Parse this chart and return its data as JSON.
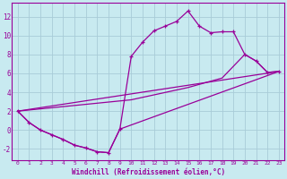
{
  "xlabel": "Windchill (Refroidissement éolien,°C)",
  "background_color": "#c8eaf0",
  "grid_color": "#a8ccd8",
  "line_color": "#990099",
  "xlim": [
    -0.5,
    23.5
  ],
  "ylim": [
    -3.2,
    13.5
  ],
  "yticks": [
    -2,
    0,
    2,
    4,
    6,
    8,
    10,
    12
  ],
  "xticks": [
    0,
    1,
    2,
    3,
    4,
    5,
    6,
    7,
    8,
    9,
    10,
    11,
    12,
    13,
    14,
    15,
    16,
    17,
    18,
    19,
    20,
    21,
    22,
    23
  ],
  "curve1_x": [
    0,
    1,
    2,
    3,
    4,
    5,
    6,
    7,
    8,
    9,
    10,
    11,
    12,
    13,
    14,
    15,
    16,
    17,
    18,
    19,
    20,
    21,
    22,
    23
  ],
  "curve1_y": [
    2.0,
    0.8,
    0.0,
    -0.5,
    -1.0,
    -1.6,
    -1.9,
    -2.3,
    -2.4,
    0.1,
    7.8,
    9.3,
    10.5,
    11.0,
    11.5,
    12.6,
    11.0,
    10.3,
    10.4,
    10.4,
    8.0,
    7.3,
    6.1,
    6.2
  ],
  "curve2_x": [
    0,
    1,
    2,
    3,
    4,
    5,
    6,
    7,
    8,
    9,
    23
  ],
  "curve2_y": [
    2.0,
    0.8,
    0.0,
    -0.5,
    -1.0,
    -1.6,
    -1.9,
    -2.3,
    -2.4,
    0.1,
    6.2
  ],
  "curve3_x": [
    0,
    23
  ],
  "curve3_y": [
    2.0,
    6.2
  ],
  "curve4_x": [
    0,
    10,
    15,
    18,
    20,
    21,
    22,
    23
  ],
  "curve4_y": [
    2.0,
    3.2,
    4.5,
    5.5,
    8.0,
    7.3,
    6.1,
    6.2
  ]
}
